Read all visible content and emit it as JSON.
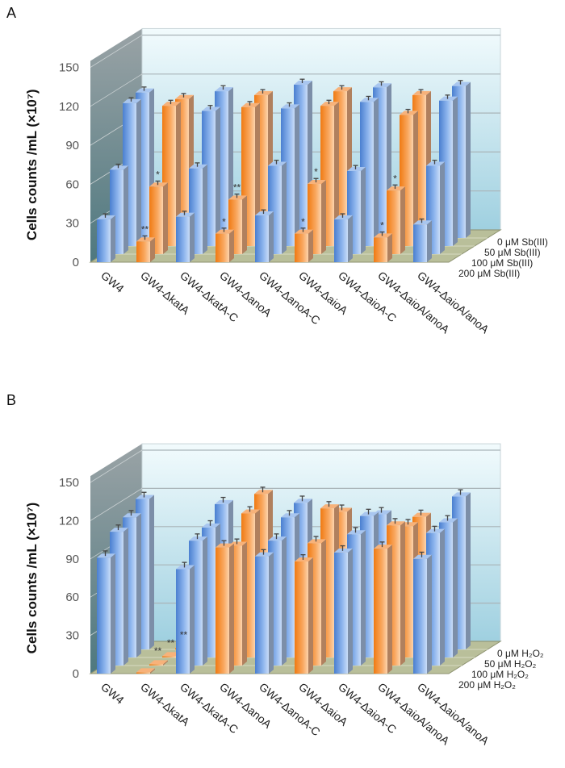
{
  "chart_data": [
    {
      "type": "bar",
      "panel_label": "A",
      "title": "",
      "ylabel": "Cells counts /mL (×10⁷)",
      "xlabel": "",
      "ylim": [
        0,
        150
      ],
      "yticks": [
        0,
        30,
        60,
        90,
        120,
        150
      ],
      "grid": true,
      "legend_placement": "right",
      "categories": [
        "GW4",
        "GW4-ΔkatA",
        "GW4-ΔkatA-C",
        "GW4-ΔanoA",
        "GW4-ΔanoA-C",
        "GW4-ΔaioA",
        "GW4-ΔaioA-C",
        "GW4-ΔaioA/anoA",
        "GW4-ΔaioA/anoA"
      ],
      "bar_colors": [
        "#5b8fd9",
        "#f5821f",
        "#5b8fd9",
        "#f5821f",
        "#5b8fd9",
        "#f5821f",
        "#5b8fd9",
        "#f5821f",
        "#5b8fd9"
      ],
      "series": [
        {
          "name": "200 μM Sb(III)",
          "values": [
            33,
            16,
            35,
            22,
            36,
            22,
            33,
            19,
            29
          ]
        },
        {
          "name": "100 μM Sb(III)",
          "values": [
            65,
            52,
            66,
            42,
            68,
            54,
            64,
            49,
            68
          ]
        },
        {
          "name": "50 μM Sb(III)",
          "values": [
            110,
            108,
            104,
            107,
            106,
            108,
            111,
            101,
            112
          ]
        },
        {
          "name": "0 μM Sb(III)",
          "values": [
            112,
            107,
            113,
            110,
            118,
            113,
            116,
            110,
            117
          ]
        }
      ],
      "error": 3,
      "annotations": [
        {
          "category": 1,
          "series": 0,
          "text": "**"
        },
        {
          "category": 1,
          "series": 1,
          "text": "*"
        },
        {
          "category": 3,
          "series": 0,
          "text": "*"
        },
        {
          "category": 3,
          "series": 1,
          "text": "**"
        },
        {
          "category": 5,
          "series": 0,
          "text": "*"
        },
        {
          "category": 5,
          "series": 1,
          "text": "*"
        },
        {
          "category": 7,
          "series": 0,
          "text": "*"
        },
        {
          "category": 7,
          "series": 1,
          "text": "*"
        }
      ]
    },
    {
      "type": "bar",
      "panel_label": "B",
      "title": "",
      "ylabel": "Cells counts /mL (×10⁷)",
      "xlabel": "",
      "ylim": [
        0,
        150
      ],
      "yticks": [
        0,
        30,
        60,
        90,
        120,
        150
      ],
      "grid": true,
      "legend_placement": "right",
      "categories": [
        "GW4",
        "GW4-ΔkatA",
        "GW4-ΔkatA-C",
        "GW4-ΔanoA",
        "GW4-ΔanoA-C",
        "GW4-ΔaioA",
        "GW4-ΔaioA-C",
        "GW4-ΔaioA/anoA",
        "GW4-ΔaioA/anoA"
      ],
      "bar_colors": [
        "#5b8fd9",
        "#f5821f",
        "#5b8fd9",
        "#f5821f",
        "#5b8fd9",
        "#f5821f",
        "#5b8fd9",
        "#f5821f",
        "#5b8fd9"
      ],
      "series": [
        {
          "name": "200 μM H₂O₂",
          "values": [
            91,
            1,
            82,
            99,
            92,
            88,
            95,
            98,
            90
          ]
        },
        {
          "name": "100 μM H₂O₂",
          "values": [
            105,
            1,
            98,
            94,
            98,
            96,
            103,
            110,
            104
          ]
        },
        {
          "name": "50 μM H₂O₂",
          "values": [
            110,
            1,
            102,
            113,
            110,
            117,
            111,
            103,
            106
          ]
        },
        {
          "name": "0 μM H₂O₂",
          "values": [
            118,
            1,
            114,
            122,
            115,
            108,
            106,
            104,
            120
          ]
        }
      ],
      "error": 4,
      "annotations": [
        {
          "category": 1,
          "series": 1,
          "text": "**"
        },
        {
          "category": 1,
          "series": 2,
          "text": "**"
        },
        {
          "category": 1,
          "series": 3,
          "text": "**"
        }
      ]
    }
  ]
}
